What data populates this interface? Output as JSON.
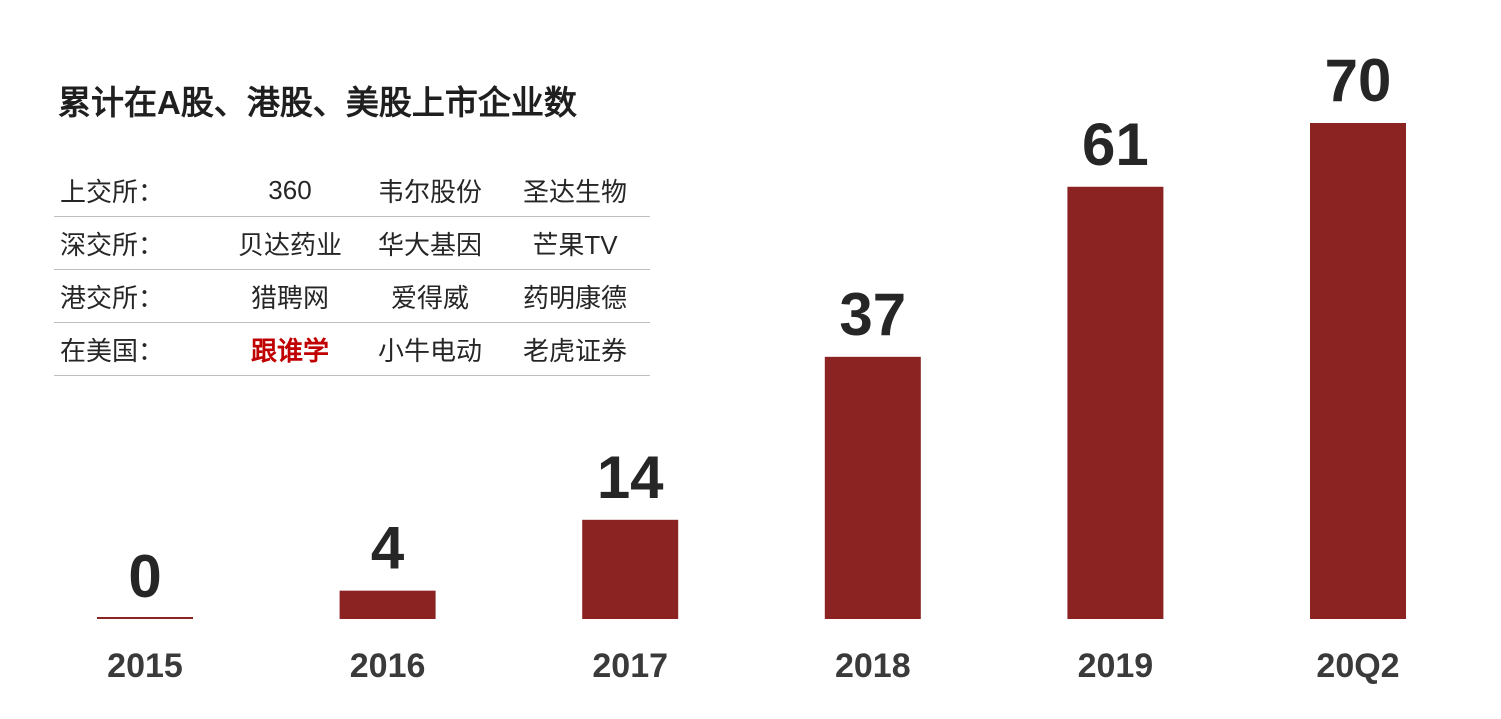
{
  "title": "累计在A股、港股、美股上市企业数",
  "exchanges": [
    {
      "label": "上交所：",
      "companies": [
        "360",
        "韦尔股份",
        "圣达生物"
      ]
    },
    {
      "label": "深交所：",
      "companies": [
        "贝达药业",
        "华大基因",
        "芒果TV"
      ]
    },
    {
      "label": "港交所：",
      "companies": [
        "猎聘网",
        "爱得威",
        "药明康德"
      ]
    },
    {
      "label": "在美国：",
      "companies": [
        "跟谁学",
        "小牛电动",
        "老虎证券"
      ]
    }
  ],
  "highlight_color": "#c00000",
  "chart_data": {
    "type": "bar",
    "categories": [
      "2015",
      "2016",
      "2017",
      "2018",
      "2019",
      "20Q2"
    ],
    "values": [
      0,
      4,
      14,
      37,
      61,
      70
    ],
    "data_labels": [
      "0",
      "4",
      "14",
      "37",
      "61",
      "70"
    ],
    "title": "",
    "xlabel": "",
    "ylabel": "",
    "ylim": [
      0,
      70
    ],
    "grid": false,
    "legend": "none",
    "bar_color": "#8b2323"
  }
}
